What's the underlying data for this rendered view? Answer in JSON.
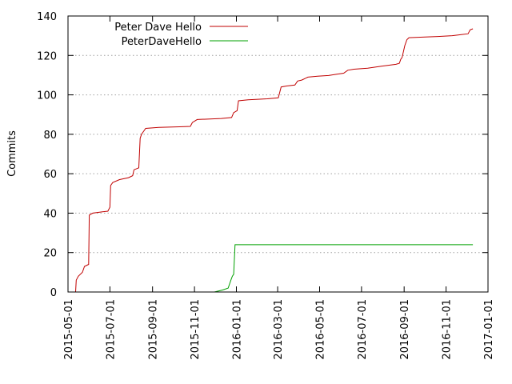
{
  "chart_data": {
    "type": "line",
    "title": "",
    "xlabel": "",
    "ylabel": "Commits",
    "x_axis_type": "date",
    "xlim": [
      "2015-05-01",
      "2017-01-01"
    ],
    "ylim": [
      0,
      140
    ],
    "x_ticks": [
      "2015-05-01",
      "2015-07-01",
      "2015-09-01",
      "2015-11-01",
      "2016-01-01",
      "2016-03-01",
      "2016-05-01",
      "2016-07-01",
      "2016-09-01",
      "2016-11-01",
      "2017-01-01"
    ],
    "y_ticks": [
      0,
      20,
      40,
      60,
      80,
      100,
      120,
      140
    ],
    "grid": "horizontal-dotted",
    "legend_position": "top-left",
    "series": [
      {
        "name": "Peter Dave Hello",
        "color": "#c00000",
        "points": [
          [
            "2015-05-12",
            0
          ],
          [
            "2015-05-13",
            6
          ],
          [
            "2015-05-16",
            8
          ],
          [
            "2015-05-22",
            10
          ],
          [
            "2015-05-25",
            13
          ],
          [
            "2015-05-31",
            14
          ],
          [
            "2015-06-01",
            39
          ],
          [
            "2015-06-06",
            40
          ],
          [
            "2015-06-16",
            40.5
          ],
          [
            "2015-06-28",
            41
          ],
          [
            "2015-07-01",
            43
          ],
          [
            "2015-07-02",
            54
          ],
          [
            "2015-07-05",
            55.5
          ],
          [
            "2015-07-15",
            57
          ],
          [
            "2015-07-28",
            58
          ],
          [
            "2015-08-03",
            59
          ],
          [
            "2015-08-05",
            62
          ],
          [
            "2015-08-12",
            63
          ],
          [
            "2015-08-14",
            78
          ],
          [
            "2015-08-16",
            80
          ],
          [
            "2015-08-20",
            82
          ],
          [
            "2015-08-22",
            83
          ],
          [
            "2015-09-10",
            83.5
          ],
          [
            "2015-10-10",
            83.8
          ],
          [
            "2015-10-26",
            84
          ],
          [
            "2015-10-29",
            86
          ],
          [
            "2015-11-05",
            87.5
          ],
          [
            "2015-12-10",
            88
          ],
          [
            "2015-12-25",
            88.5
          ],
          [
            "2015-12-28",
            91
          ],
          [
            "2016-01-02",
            92
          ],
          [
            "2016-01-04",
            97
          ],
          [
            "2016-01-18",
            97.5
          ],
          [
            "2016-02-15",
            98
          ],
          [
            "2016-03-02",
            98.5
          ],
          [
            "2016-03-06",
            104
          ],
          [
            "2016-03-14",
            104.5
          ],
          [
            "2016-03-26",
            105
          ],
          [
            "2016-03-30",
            107
          ],
          [
            "2016-04-05",
            107.5
          ],
          [
            "2016-04-14",
            109
          ],
          [
            "2016-04-28",
            109.5
          ],
          [
            "2016-05-14",
            109.8
          ],
          [
            "2016-05-26",
            110.5
          ],
          [
            "2016-06-05",
            111
          ],
          [
            "2016-06-11",
            112.5
          ],
          [
            "2016-06-20",
            113
          ],
          [
            "2016-07-10",
            113.5
          ],
          [
            "2016-07-30",
            114.5
          ],
          [
            "2016-08-20",
            115.5
          ],
          [
            "2016-08-25",
            116
          ],
          [
            "2016-08-27",
            118
          ],
          [
            "2016-08-29",
            119
          ],
          [
            "2016-09-02",
            125
          ],
          [
            "2016-09-05",
            128
          ],
          [
            "2016-09-08",
            129
          ],
          [
            "2016-09-28",
            129.3
          ],
          [
            "2016-10-20",
            129.6
          ],
          [
            "2016-11-10",
            130
          ],
          [
            "2016-11-22",
            130.5
          ],
          [
            "2016-12-03",
            131
          ],
          [
            "2016-12-06",
            133
          ],
          [
            "2016-12-10",
            133.5
          ]
        ]
      },
      {
        "name": "PeterDaveHello",
        "color": "#00a000",
        "points": [
          [
            "2015-11-30",
            0
          ],
          [
            "2015-12-12",
            1
          ],
          [
            "2015-12-20",
            2
          ],
          [
            "2015-12-24",
            6
          ],
          [
            "2015-12-26",
            8
          ],
          [
            "2015-12-28",
            9
          ],
          [
            "2015-12-30",
            24
          ],
          [
            "2016-12-10",
            24
          ]
        ]
      }
    ]
  }
}
